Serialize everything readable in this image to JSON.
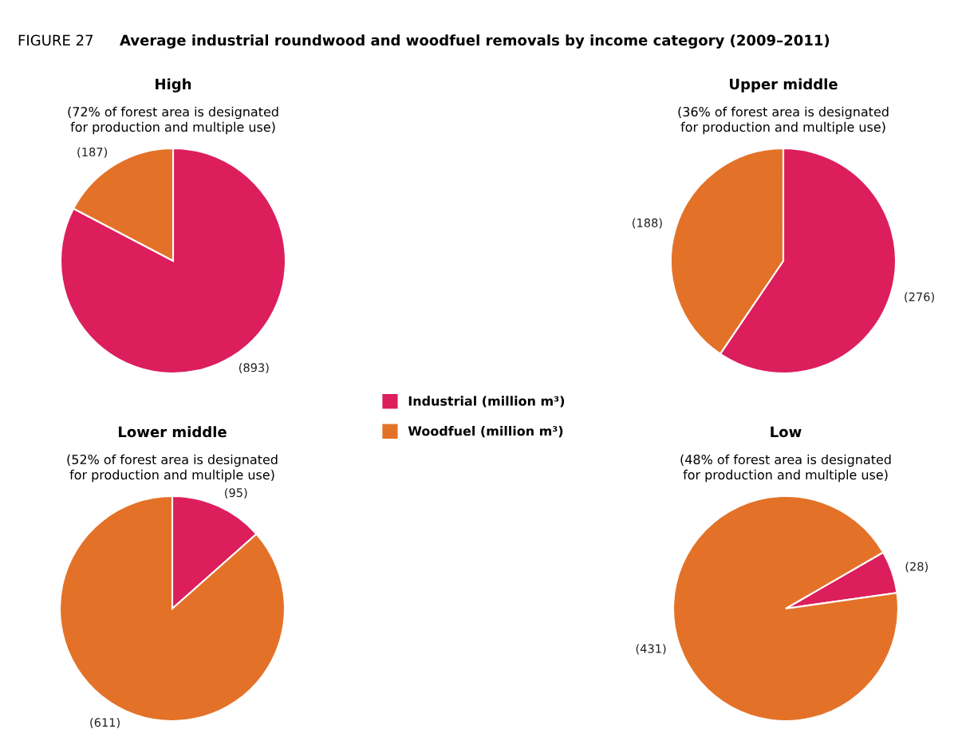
{
  "chart_data": [
    {
      "type": "pie",
      "title": "High",
      "subtitle": "(72% of forest area is designated\nfor production and multiple use)",
      "annotations": [
        "FIGURE 27",
        "Average industrial roundwood and woodfuel removals by income category (2009–2011)"
      ],
      "categories": [
        "Industrial (million m³)",
        "Woodfuel (million m³)"
      ],
      "values": [
        893,
        187
      ],
      "value_labels": [
        "(893)",
        "(187)"
      ],
      "colors": [
        "#dc1e5c",
        "#e37228"
      ],
      "legend": "right"
    },
    {
      "type": "pie",
      "title": "Upper middle",
      "subtitle": "(36% of forest area is designated\nfor production and multiple use)",
      "values": [
        276,
        188
      ],
      "value_labels": [
        "(276)",
        "(188)"
      ],
      "colors": [
        "#dc1e5c",
        "#e37228"
      ]
    },
    {
      "type": "pie",
      "title": "Lower middle",
      "subtitle": "(52% of forest area is designated\nfor production and multiple use)",
      "values": [
        95,
        611
      ],
      "value_labels": [
        "(95)",
        "(611)"
      ],
      "colors": [
        "#dc1e5c",
        "#e37228"
      ]
    },
    {
      "type": "pie",
      "title": "Low",
      "subtitle": "(48% of forest area is designated\nfor production and multiple use)",
      "values": [
        28,
        431
      ],
      "value_labels": [
        "(28)",
        "(431)"
      ],
      "colors": [
        "#dc1e5c",
        "#e37228"
      ]
    }
  ]
}
